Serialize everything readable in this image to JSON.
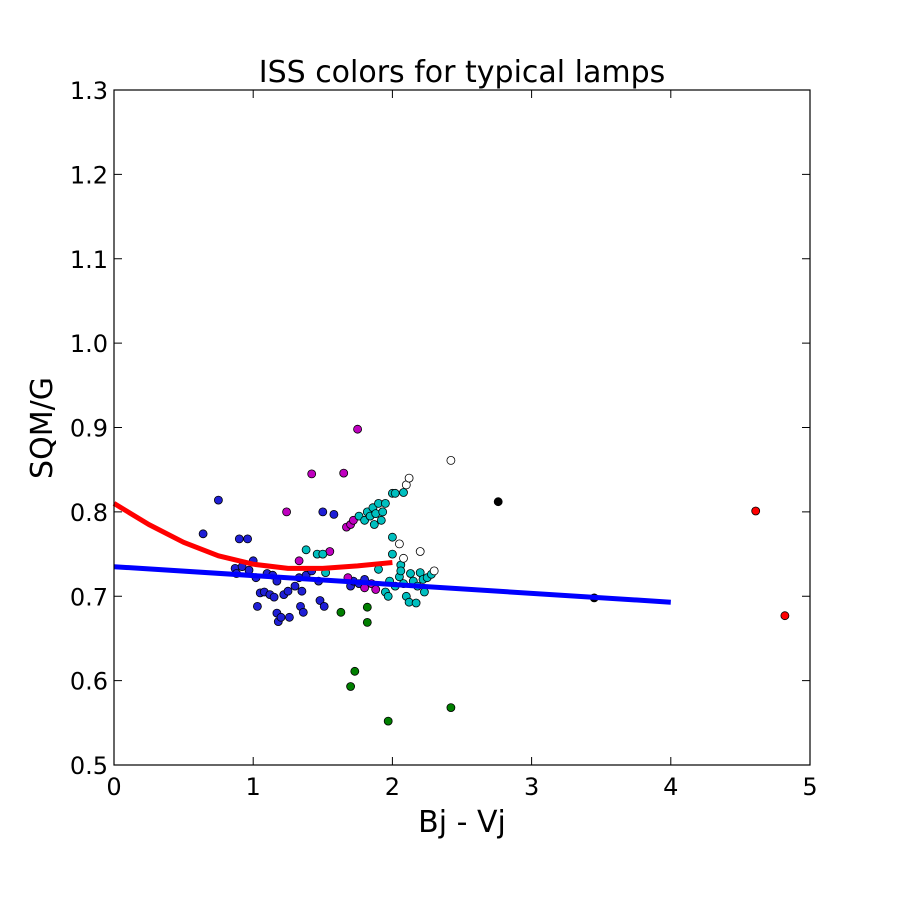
{
  "chart_data": {
    "type": "scatter",
    "title": "ISS colors for typical lamps",
    "xlabel": "Bj - Vj",
    "ylabel": "SQM/G",
    "xlim": [
      0,
      5
    ],
    "ylim": [
      0.5,
      1.3
    ],
    "xticks": [
      "0",
      "1",
      "2",
      "3",
      "4",
      "5"
    ],
    "yticks": [
      "0.5",
      "0.6",
      "0.7",
      "0.8",
      "0.9",
      "1.0",
      "1.1",
      "1.2",
      "1.3"
    ],
    "xtick_values": [
      0,
      1,
      2,
      3,
      4,
      5
    ],
    "ytick_values": [
      0.5,
      0.6,
      0.7,
      0.8,
      0.9,
      1.0,
      1.1,
      1.2,
      1.3
    ],
    "grid": false,
    "fit_lines": [
      {
        "color": "#ff0000",
        "x": [
          0,
          0.25,
          0.5,
          0.75,
          1.0,
          1.25,
          1.5,
          1.75,
          2.0
        ],
        "y": [
          0.81,
          0.785,
          0.764,
          0.748,
          0.738,
          0.733,
          0.733,
          0.736,
          0.74
        ]
      },
      {
        "color": "#0000ff",
        "x": [
          0,
          4.0
        ],
        "y": [
          0.735,
          0.693
        ]
      }
    ],
    "series": [
      {
        "color": "#1f1fd6",
        "points": [
          [
            0.64,
            0.774
          ],
          [
            0.75,
            0.814
          ],
          [
            0.87,
            0.733
          ],
          [
            0.88,
            0.727
          ],
          [
            0.9,
            0.768
          ],
          [
            0.92,
            0.735
          ],
          [
            0.96,
            0.768
          ],
          [
            0.97,
            0.731
          ],
          [
            1.0,
            0.742
          ],
          [
            1.02,
            0.722
          ],
          [
            1.03,
            0.688
          ],
          [
            1.05,
            0.704
          ],
          [
            1.08,
            0.705
          ],
          [
            1.1,
            0.727
          ],
          [
            1.12,
            0.702
          ],
          [
            1.14,
            0.725
          ],
          [
            1.15,
            0.699
          ],
          [
            1.17,
            0.718
          ],
          [
            1.17,
            0.68
          ],
          [
            1.18,
            0.67
          ],
          [
            1.2,
            0.675
          ],
          [
            1.22,
            0.702
          ],
          [
            1.25,
            0.706
          ],
          [
            1.26,
            0.675
          ],
          [
            1.3,
            0.712
          ],
          [
            1.33,
            0.722
          ],
          [
            1.34,
            0.688
          ],
          [
            1.35,
            0.706
          ],
          [
            1.36,
            0.681
          ],
          [
            1.38,
            0.725
          ],
          [
            1.42,
            0.73
          ],
          [
            1.47,
            0.718
          ],
          [
            1.48,
            0.695
          ],
          [
            1.5,
            0.8
          ],
          [
            1.51,
            0.688
          ],
          [
            1.58,
            0.797
          ],
          [
            1.7,
            0.712
          ],
          [
            1.72,
            0.718
          ],
          [
            1.76,
            0.715
          ],
          [
            1.8,
            0.72
          ]
        ]
      },
      {
        "color": "#bf00bf",
        "points": [
          [
            1.24,
            0.8
          ],
          [
            1.33,
            0.742
          ],
          [
            1.42,
            0.845
          ],
          [
            1.55,
            0.753
          ],
          [
            1.65,
            0.846
          ],
          [
            1.67,
            0.782
          ],
          [
            1.68,
            0.722
          ],
          [
            1.7,
            0.785
          ],
          [
            1.72,
            0.79
          ],
          [
            1.75,
            0.898
          ],
          [
            1.8,
            0.71
          ],
          [
            1.85,
            0.715
          ],
          [
            1.88,
            0.708
          ]
        ]
      },
      {
        "color": "#00bfbf",
        "points": [
          [
            1.38,
            0.755
          ],
          [
            1.46,
            0.75
          ],
          [
            1.5,
            0.75
          ],
          [
            1.52,
            0.728
          ],
          [
            1.76,
            0.795
          ],
          [
            1.8,
            0.79
          ],
          [
            1.82,
            0.8
          ],
          [
            1.84,
            0.795
          ],
          [
            1.86,
            0.805
          ],
          [
            1.87,
            0.785
          ],
          [
            1.88,
            0.798
          ],
          [
            1.9,
            0.81
          ],
          [
            1.92,
            0.79
          ],
          [
            1.93,
            0.8
          ],
          [
            1.95,
            0.81
          ],
          [
            1.9,
            0.732
          ],
          [
            1.95,
            0.705
          ],
          [
            1.97,
            0.7
          ],
          [
            1.98,
            0.718
          ],
          [
            2.0,
            0.822
          ],
          [
            2.02,
            0.822
          ],
          [
            2.0,
            0.77
          ],
          [
            2.0,
            0.75
          ],
          [
            2.02,
            0.712
          ],
          [
            2.05,
            0.723
          ],
          [
            2.06,
            0.737
          ],
          [
            2.06,
            0.73
          ],
          [
            2.08,
            0.823
          ],
          [
            2.08,
            0.715
          ],
          [
            2.1,
            0.7
          ],
          [
            2.12,
            0.693
          ],
          [
            2.13,
            0.727
          ],
          [
            2.15,
            0.718
          ],
          [
            2.17,
            0.692
          ],
          [
            2.18,
            0.712
          ],
          [
            2.2,
            0.728
          ],
          [
            2.22,
            0.72
          ],
          [
            2.23,
            0.705
          ],
          [
            2.25,
            0.722
          ],
          [
            2.28,
            0.726
          ]
        ]
      },
      {
        "color": "#007f00",
        "points": [
          [
            1.63,
            0.681
          ],
          [
            1.7,
            0.593
          ],
          [
            1.73,
            0.611
          ],
          [
            1.82,
            0.669
          ],
          [
            1.82,
            0.687
          ],
          [
            1.97,
            0.552
          ],
          [
            2.42,
            0.568
          ]
        ]
      },
      {
        "color": "#ffffff",
        "points": [
          [
            2.05,
            0.762
          ],
          [
            2.08,
            0.745
          ],
          [
            2.1,
            0.832
          ],
          [
            2.12,
            0.84
          ],
          [
            2.2,
            0.753
          ],
          [
            2.3,
            0.73
          ],
          [
            2.42,
            0.861
          ]
        ]
      },
      {
        "color": "#000000",
        "points": [
          [
            2.76,
            0.812
          ],
          [
            3.45,
            0.698
          ]
        ]
      },
      {
        "color": "#ff0000",
        "points": [
          [
            4.61,
            0.801
          ],
          [
            4.82,
            0.677
          ]
        ]
      }
    ]
  }
}
